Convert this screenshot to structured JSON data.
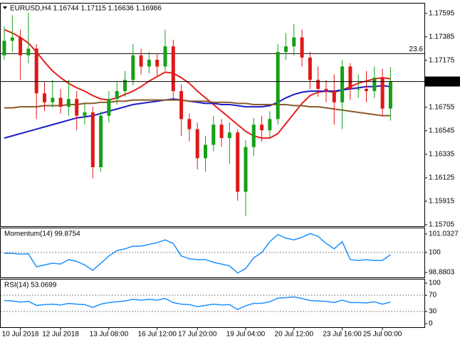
{
  "chart_data": [
    {
      "type": "candlestick",
      "title": "EURUSD,H4  1.16744 1.17115 1.16636 1.16986",
      "categories": [
        null,
        null,
        "10 Jul 2018",
        null,
        null,
        null,
        null,
        "12 Jul 2018",
        null,
        null,
        null,
        null,
        null,
        "13 Jul 08:00",
        null,
        null,
        null,
        null,
        null,
        "16 Jul 12:00",
        null,
        null,
        null,
        null,
        "17 Jul 20:00",
        null,
        null,
        null,
        null,
        null,
        "19 Jul 04:00",
        null,
        null,
        null,
        null,
        null,
        "20 Jul 12:00",
        null,
        null,
        null,
        null,
        null,
        "23 Jul 16:00",
        null,
        null,
        null,
        null,
        "25 Jul 00:00",
        null
      ],
      "open": [
        1.1722,
        1.1735,
        1.1738,
        1.1722,
        1.1728,
        1.1688,
        1.168,
        1.1684,
        1.1676,
        1.1683,
        1.1668,
        1.1671,
        1.1622,
        1.1668,
        1.1683,
        1.169,
        1.17,
        1.1722,
        1.1712,
        1.1718,
        1.1712,
        1.173,
        1.169,
        1.1665,
        1.1656,
        1.163,
        1.1642,
        1.166,
        1.1648,
        1.1653,
        1.16,
        1.164,
        1.166,
        1.1655,
        1.1665,
        1.1725,
        1.173,
        1.1738,
        1.172,
        1.17,
        1.1692,
        1.169,
        1.168,
        1.1712,
        1.1692,
        1.1692,
        1.169,
        1.1702,
        1.16744
      ],
      "high": [
        1.1748,
        1.1758,
        1.1745,
        1.176,
        1.1732,
        1.1698,
        1.17,
        1.1692,
        1.17,
        1.169,
        1.168,
        1.1676,
        1.1672,
        1.169,
        1.1698,
        1.1708,
        1.1732,
        1.1728,
        1.1725,
        1.1724,
        1.1745,
        1.1736,
        1.1696,
        1.167,
        1.1662,
        1.165,
        1.1668,
        1.1665,
        1.1662,
        1.1656,
        1.1646,
        1.1666,
        1.1668,
        1.1672,
        1.1732,
        1.1742,
        1.175,
        1.1745,
        1.1725,
        1.1712,
        1.17,
        1.1705,
        1.1718,
        1.1715,
        1.1705,
        1.1708,
        1.1712,
        1.171,
        1.17115
      ],
      "low": [
        1.1718,
        1.1725,
        1.17,
        1.1715,
        1.1665,
        1.1672,
        1.1675,
        1.167,
        1.1668,
        1.1655,
        1.166,
        1.1612,
        1.1618,
        1.1662,
        1.1678,
        1.1685,
        1.1695,
        1.1705,
        1.1706,
        1.1704,
        1.1708,
        1.1682,
        1.165,
        1.1645,
        1.162,
        1.1618,
        1.1636,
        1.164,
        1.1625,
        1.1592,
        1.1578,
        1.1632,
        1.1645,
        1.1648,
        1.166,
        1.1718,
        1.1722,
        1.1712,
        1.1692,
        1.1685,
        1.168,
        1.166,
        1.1656,
        1.1682,
        1.1684,
        1.168,
        1.1684,
        1.1668,
        1.16636
      ],
      "close": [
        1.1735,
        1.1738,
        1.1722,
        1.1728,
        1.1688,
        1.168,
        1.1684,
        1.1676,
        1.1683,
        1.1668,
        1.1671,
        1.1622,
        1.1668,
        1.1683,
        1.169,
        1.17,
        1.1722,
        1.1712,
        1.1718,
        1.1712,
        1.173,
        1.169,
        1.1665,
        1.1656,
        1.163,
        1.1642,
        1.166,
        1.1648,
        1.1653,
        1.16,
        1.164,
        1.166,
        1.1655,
        1.1665,
        1.1725,
        1.173,
        1.1738,
        1.172,
        1.17,
        1.1692,
        1.169,
        1.168,
        1.1712,
        1.1692,
        1.1692,
        1.169,
        1.1702,
        1.16744,
        1.16986
      ],
      "up_color": "#16a016",
      "down_color": "#e01818",
      "overlays": [
        {
          "color": "#e8201c",
          "values": [
            1.1745,
            1.1742,
            1.1738,
            1.1733,
            1.1725,
            1.1716,
            1.1708,
            1.1702,
            1.1697,
            1.1693,
            1.169,
            1.1686,
            1.1683,
            1.1682,
            1.1684,
            1.1687,
            1.169,
            1.1694,
            1.1699,
            1.1703,
            1.1707,
            1.1706,
            1.1702,
            1.1697,
            1.169,
            1.1684,
            1.1678,
            1.1672,
            1.1666,
            1.166,
            1.1654,
            1.165,
            1.1648,
            1.1648,
            1.1652,
            1.1661,
            1.167,
            1.1679,
            1.1686,
            1.1689,
            1.169,
            1.1689,
            1.1691,
            1.1694,
            1.1697,
            1.1699,
            1.1701,
            1.1702,
            1.1701
          ]
        },
        {
          "color": "#1c1cc8",
          "values": [
            1.1648,
            1.165,
            1.1652,
            1.1654,
            1.1656,
            1.1658,
            1.166,
            1.1662,
            1.1664,
            1.1666,
            1.1667,
            1.1668,
            1.167,
            1.1672,
            1.1674,
            1.1676,
            1.1678,
            1.1679,
            1.168,
            1.1681,
            1.1682,
            1.1683,
            1.1682,
            1.1681,
            1.168,
            1.1679,
            1.1679,
            1.1678,
            1.1678,
            1.1677,
            1.1676,
            1.1676,
            1.1676,
            1.1677,
            1.168,
            1.1684,
            1.1687,
            1.1689,
            1.169,
            1.169,
            1.169,
            1.169,
            1.1691,
            1.1692,
            1.1693,
            1.1694,
            1.1694,
            1.1695,
            1.1694
          ]
        },
        {
          "color": "#8b5a2b",
          "values": [
            1.1675,
            1.1675,
            1.1676,
            1.1676,
            1.1676,
            1.1677,
            1.1677,
            1.1677,
            1.1678,
            1.1678,
            1.1679,
            1.1679,
            1.168,
            1.168,
            1.1681,
            1.1681,
            1.1682,
            1.1682,
            1.1682,
            1.1682,
            1.1682,
            1.1682,
            1.1682,
            1.1681,
            1.1681,
            1.1681,
            1.168,
            1.168,
            1.168,
            1.1679,
            1.1679,
            1.1678,
            1.1678,
            1.1678,
            1.1678,
            1.1678,
            1.1677,
            1.1677,
            1.1676,
            1.1676,
            1.1675,
            1.1674,
            1.1673,
            1.1672,
            1.1671,
            1.167,
            1.1669,
            1.1668,
            1.1668
          ]
        }
      ],
      "ylim": [
        1.15692,
        1.17683
      ],
      "yticks": [
        1.17595,
        1.17385,
        1.17175,
        1.16755,
        1.16545,
        1.16335,
        1.16125,
        1.15915,
        1.15705
      ],
      "levels": [
        {
          "value": 1.17235,
          "label": "23.6"
        }
      ],
      "last_price": 1.16986
    },
    {
      "type": "line",
      "title": "Momentum(14) 99.8754",
      "color": "#1e90ff",
      "values": [
        99.95,
        99.95,
        99.9,
        99.92,
        99.2,
        99.3,
        99.4,
        99.35,
        99.6,
        99.5,
        99.3,
        99.0,
        99.4,
        99.8,
        100.1,
        100.2,
        100.35,
        100.35,
        100.45,
        100.55,
        100.7,
        100.5,
        99.8,
        99.65,
        99.6,
        99.6,
        99.45,
        99.35,
        99.25,
        98.85,
        99.1,
        99.7,
        100.0,
        100.6,
        101.0,
        100.8,
        100.7,
        100.85,
        101.05,
        100.9,
        100.5,
        100.2,
        100.6,
        99.6,
        99.55,
        99.6,
        99.55,
        99.55,
        99.8754
      ],
      "ylim": [
        98.606,
        101.346
      ],
      "yticks": [
        101.0327,
        100,
        98.8803
      ],
      "levels": [
        100
      ]
    },
    {
      "type": "line",
      "title": "RSI(14) 53.0699",
      "color": "#1e90ff",
      "values": [
        57,
        56,
        53,
        55,
        45,
        47,
        48,
        46,
        50,
        48,
        47,
        40,
        48,
        52,
        54,
        56,
        60,
        58,
        60,
        58,
        62,
        52,
        48,
        47,
        42,
        45,
        48,
        46,
        47,
        35,
        44,
        50,
        50,
        54,
        63,
        64,
        66,
        62,
        57,
        56,
        55,
        52,
        58,
        52,
        52,
        51,
        54,
        48,
        53.0699
      ],
      "ylim": [
        -8.8,
        108.8
      ],
      "yticks": [
        100,
        70,
        30,
        0
      ],
      "levels": [
        70,
        30
      ]
    }
  ]
}
